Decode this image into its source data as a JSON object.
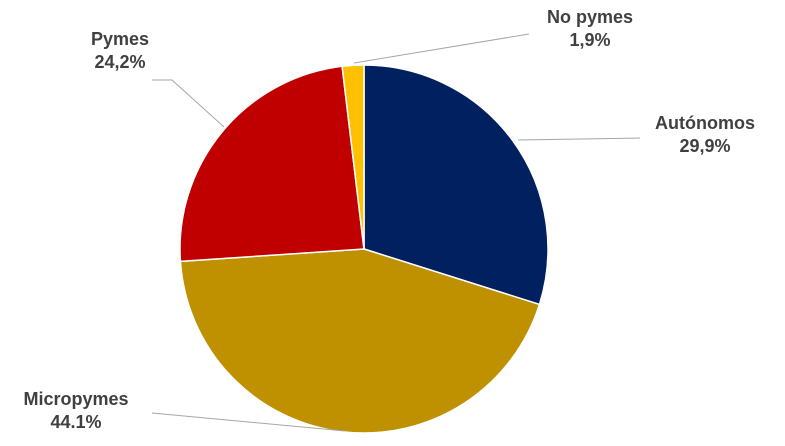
{
  "chart_data": {
    "type": "pie",
    "title": "",
    "start_angle_deg": 0,
    "direction": "clockwise",
    "slices": [
      {
        "label": "Autónomos",
        "value": 29.9,
        "value_label": "29,9%",
        "color": "#002060"
      },
      {
        "label": "Micropymes",
        "value": 44.1,
        "value_label": "44.1%",
        "color": "#BF9000"
      },
      {
        "label": "Pymes",
        "value": 24.2,
        "value_label": "24,2%",
        "color": "#C00000"
      },
      {
        "label": "No pymes",
        "value": 1.9,
        "value_label": "1,9%",
        "color": "#FFC000"
      }
    ],
    "legend": "none",
    "label_color": "#404040",
    "leader_line_color": "#A6A6A6"
  }
}
